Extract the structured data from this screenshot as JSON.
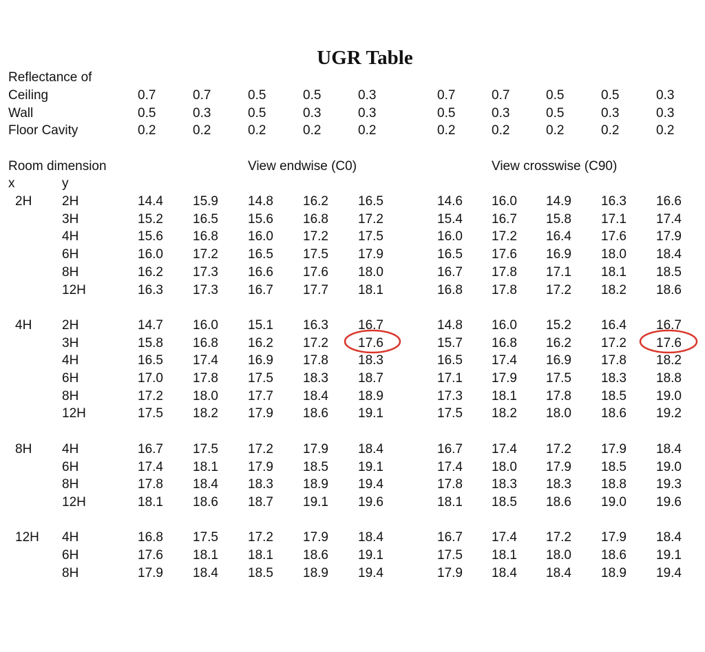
{
  "title": "UGR Table",
  "reflectance": {
    "heading": "Reflectance of",
    "rows": [
      {
        "label": "Ceiling",
        "values": [
          "0.7",
          "0.7",
          "0.5",
          "0.5",
          "0.3",
          "0.7",
          "0.7",
          "0.5",
          "0.5",
          "0.3"
        ]
      },
      {
        "label": "Wall",
        "values": [
          "0.5",
          "0.3",
          "0.5",
          "0.3",
          "0.3",
          "0.5",
          "0.3",
          "0.5",
          "0.3",
          "0.3"
        ]
      },
      {
        "label": "Floor Cavity",
        "values": [
          "0.2",
          "0.2",
          "0.2",
          "0.2",
          "0.2",
          "0.2",
          "0.2",
          "0.2",
          "0.2",
          "0.2"
        ]
      }
    ]
  },
  "room_dimension": "Room dimension",
  "view_endwise": "View endwise (C0)",
  "view_crosswise": "View crosswise (C90)",
  "x_label": "x",
  "y_label": "y",
  "groups": [
    {
      "x": "2H",
      "rows": [
        {
          "y": "2H",
          "values": [
            "14.4",
            "15.9",
            "14.8",
            "16.2",
            "16.5",
            "14.6",
            "16.0",
            "14.9",
            "16.3",
            "16.6"
          ]
        },
        {
          "y": "3H",
          "values": [
            "15.2",
            "16.5",
            "15.6",
            "16.8",
            "17.2",
            "15.4",
            "16.7",
            "15.8",
            "17.1",
            "17.4"
          ]
        },
        {
          "y": "4H",
          "values": [
            "15.6",
            "16.8",
            "16.0",
            "17.2",
            "17.5",
            "16.0",
            "17.2",
            "16.4",
            "17.6",
            "17.9"
          ]
        },
        {
          "y": "6H",
          "values": [
            "16.0",
            "17.2",
            "16.5",
            "17.5",
            "17.9",
            "16.5",
            "17.6",
            "16.9",
            "18.0",
            "18.4"
          ]
        },
        {
          "y": "8H",
          "values": [
            "16.2",
            "17.3",
            "16.6",
            "17.6",
            "18.0",
            "16.7",
            "17.8",
            "17.1",
            "18.1",
            "18.5"
          ]
        },
        {
          "y": "12H",
          "values": [
            "16.3",
            "17.3",
            "16.7",
            "17.7",
            "18.1",
            "16.8",
            "17.8",
            "17.2",
            "18.2",
            "18.6"
          ]
        }
      ]
    },
    {
      "x": "4H",
      "rows": [
        {
          "y": "2H",
          "values": [
            "14.7",
            "16.0",
            "15.1",
            "16.3",
            "16.7",
            "14.8",
            "16.0",
            "15.2",
            "16.4",
            "16.7"
          ]
        },
        {
          "y": "3H",
          "values": [
            "15.8",
            "16.8",
            "16.2",
            "17.2",
            "17.6",
            "15.7",
            "16.8",
            "16.2",
            "17.2",
            "17.6"
          ]
        },
        {
          "y": "4H",
          "values": [
            "16.5",
            "17.4",
            "16.9",
            "17.8",
            "18.3",
            "16.5",
            "17.4",
            "16.9",
            "17.8",
            "18.2"
          ]
        },
        {
          "y": "6H",
          "values": [
            "17.0",
            "17.8",
            "17.5",
            "18.3",
            "18.7",
            "17.1",
            "17.9",
            "17.5",
            "18.3",
            "18.8"
          ]
        },
        {
          "y": "8H",
          "values": [
            "17.2",
            "18.0",
            "17.7",
            "18.4",
            "18.9",
            "17.3",
            "18.1",
            "17.8",
            "18.5",
            "19.0"
          ]
        },
        {
          "y": "12H",
          "values": [
            "17.5",
            "18.2",
            "17.9",
            "18.6",
            "19.1",
            "17.5",
            "18.2",
            "18.0",
            "18.6",
            "19.2"
          ]
        }
      ]
    },
    {
      "x": "8H",
      "rows": [
        {
          "y": "4H",
          "values": [
            "16.7",
            "17.5",
            "17.2",
            "17.9",
            "18.4",
            "16.7",
            "17.4",
            "17.2",
            "17.9",
            "18.4"
          ]
        },
        {
          "y": "6H",
          "values": [
            "17.4",
            "18.1",
            "17.9",
            "18.5",
            "19.1",
            "17.4",
            "18.0",
            "17.9",
            "18.5",
            "19.0"
          ]
        },
        {
          "y": "8H",
          "values": [
            "17.8",
            "18.4",
            "18.3",
            "18.9",
            "19.4",
            "17.8",
            "18.3",
            "18.3",
            "18.8",
            "19.3"
          ]
        },
        {
          "y": "12H",
          "values": [
            "18.1",
            "18.6",
            "18.7",
            "19.1",
            "19.6",
            "18.1",
            "18.5",
            "18.6",
            "19.0",
            "19.6"
          ]
        }
      ]
    },
    {
      "x": "12H",
      "rows": [
        {
          "y": "4H",
          "values": [
            "16.8",
            "17.5",
            "17.2",
            "17.9",
            "18.4",
            "16.7",
            "17.4",
            "17.2",
            "17.9",
            "18.4"
          ]
        },
        {
          "y": "6H",
          "values": [
            "17.6",
            "18.1",
            "18.1",
            "18.6",
            "19.1",
            "17.5",
            "18.1",
            "18.0",
            "18.6",
            "19.1"
          ]
        },
        {
          "y": "8H",
          "values": [
            "17.9",
            "18.4",
            "18.5",
            "18.9",
            "19.4",
            "17.9",
            "18.4",
            "18.4",
            "18.9",
            "19.4"
          ]
        }
      ]
    }
  ]
}
